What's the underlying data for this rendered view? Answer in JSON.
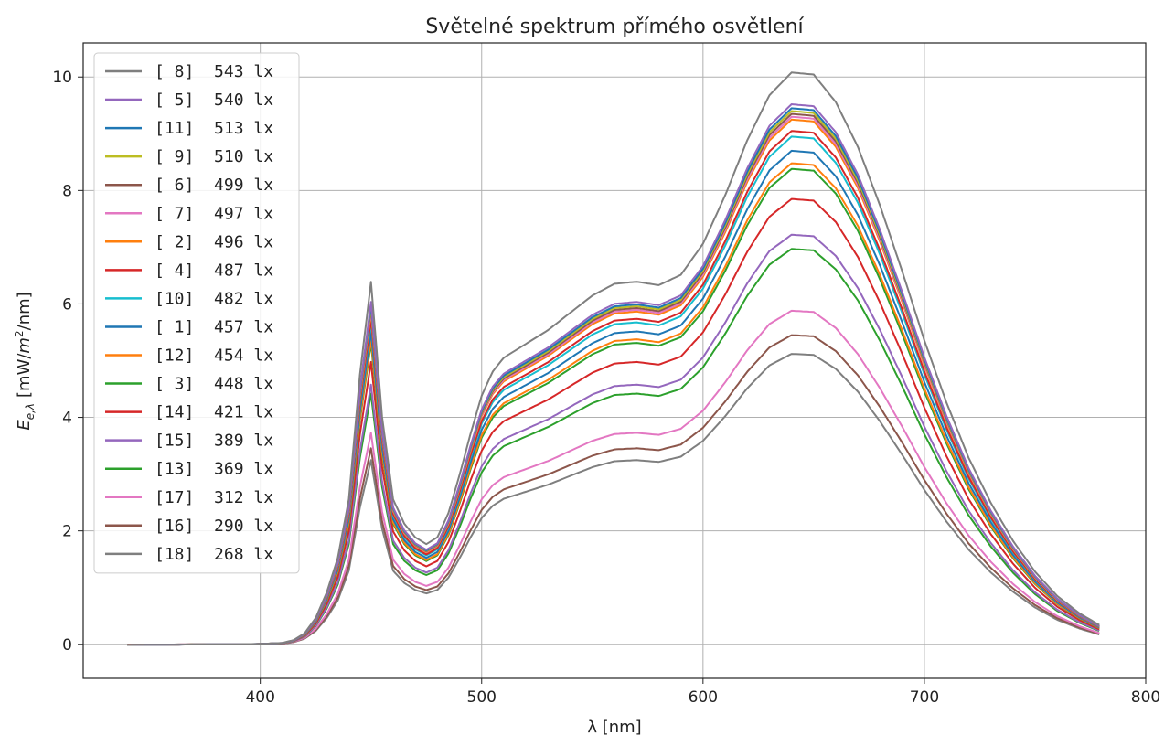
{
  "chart_data": {
    "type": "line",
    "title": "Světelné spektrum přímého osvětlení",
    "xlabel": "λ [nm]",
    "ylabel_main": "E",
    "ylabel_sub": "e,λ",
    "ylabel_unit_pre": "[mW/",
    "ylabel_unit_m": "m",
    "ylabel_unit_exp": "2",
    "ylabel_unit_post": "/nm]",
    "xlim": [
      320,
      800
    ],
    "ylim": [
      -0.6,
      10.6
    ],
    "xticks": [
      400,
      500,
      600,
      700,
      800
    ],
    "yticks": [
      0,
      2,
      4,
      6,
      8,
      10
    ],
    "grid": true,
    "legend_position": "upper-left",
    "x_range": [
      340,
      779
    ],
    "series": [
      {
        "name": "[ 8]  543 lx",
        "color": "#7f7f7f",
        "peak": 10.08
      },
      {
        "name": "[ 5]  540 lx",
        "color": "#9467bd",
        "peak": 9.52
      },
      {
        "name": "[11]  513 lx",
        "color": "#1f77b4",
        "peak": 9.45
      },
      {
        "name": "[ 9]  510 lx",
        "color": "#bcbd22",
        "peak": 9.4
      },
      {
        "name": "[ 6]  499 lx",
        "color": "#8c564b",
        "peak": 9.35
      },
      {
        "name": "[ 7]  497 lx",
        "color": "#e377c2",
        "peak": 9.3
      },
      {
        "name": "[ 2]  496 lx",
        "color": "#ff7f0e",
        "peak": 9.25
      },
      {
        "name": "[ 4]  487 lx",
        "color": "#d62728",
        "peak": 9.05
      },
      {
        "name": "[10]  482 lx",
        "color": "#17becf",
        "peak": 8.95
      },
      {
        "name": "[ 1]  457 lx",
        "color": "#1f77b4",
        "peak": 8.7
      },
      {
        "name": "[12]  454 lx",
        "color": "#ff7f0e",
        "peak": 8.48
      },
      {
        "name": "[ 3]  448 lx",
        "color": "#2ca02c",
        "peak": 8.38
      },
      {
        "name": "[14]  421 lx",
        "color": "#d62728",
        "peak": 7.85
      },
      {
        "name": "[15]  389 lx",
        "color": "#9467bd",
        "peak": 7.22
      },
      {
        "name": "[13]  369 lx",
        "color": "#2ca02c",
        "peak": 6.97
      },
      {
        "name": "[17]  312 lx",
        "color": "#e377c2",
        "peak": 5.88
      },
      {
        "name": "[16]  290 lx",
        "color": "#8c564b",
        "peak": 5.45
      },
      {
        "name": "[18]  268 lx",
        "color": "#7f7f7f",
        "peak": 5.12
      }
    ],
    "base_shape": {
      "x": [
        340,
        360,
        380,
        400,
        410,
        415,
        420,
        425,
        430,
        435,
        440,
        445,
        450,
        455,
        460,
        465,
        470,
        475,
        480,
        485,
        490,
        495,
        500,
        505,
        510,
        520,
        530,
        540,
        550,
        560,
        570,
        580,
        590,
        600,
        610,
        620,
        630,
        640,
        650,
        660,
        670,
        680,
        690,
        700,
        710,
        720,
        730,
        740,
        750,
        760,
        770,
        779
      ],
      "y": [
        -0.01,
        -0.005,
        0.0,
        0.005,
        0.02,
        0.06,
        0.16,
        0.38,
        0.75,
        1.25,
        2.1,
        3.9,
        5.25,
        3.3,
        2.1,
        1.75,
        1.55,
        1.45,
        1.55,
        1.9,
        2.45,
        3.05,
        3.6,
        3.95,
        4.15,
        4.35,
        4.55,
        4.8,
        5.05,
        5.22,
        5.25,
        5.2,
        5.35,
        5.8,
        6.5,
        7.3,
        7.95,
        8.28,
        8.25,
        7.85,
        7.2,
        6.35,
        5.4,
        4.4,
        3.5,
        2.7,
        2.05,
        1.5,
        1.05,
        0.7,
        0.45,
        0.28
      ]
    }
  }
}
